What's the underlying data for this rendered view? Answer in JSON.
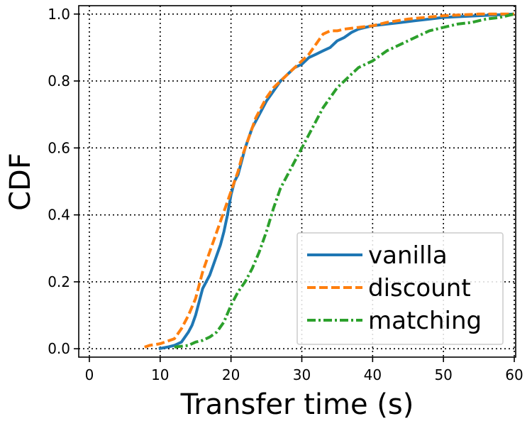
{
  "chart_data": {
    "type": "line",
    "title": "",
    "xlabel": "Transfer time (s)",
    "ylabel": "CDF",
    "xlim": [
      -1.5,
      60.2
    ],
    "ylim": [
      -0.025,
      1.025
    ],
    "xticks": [
      0,
      10,
      20,
      30,
      40,
      50,
      60
    ],
    "xtick_labels": [
      "0",
      "10",
      "20",
      "30",
      "40",
      "50",
      "60"
    ],
    "yticks": [
      0.0,
      0.2,
      0.4,
      0.6,
      0.8,
      1.0
    ],
    "ytick_labels": [
      "0.0",
      "0.2",
      "0.4",
      "0.6",
      "0.8",
      "1.0"
    ],
    "grid": true,
    "legend_position": "bottom-right",
    "series": [
      {
        "name": "vanilla",
        "color": "#1f77b4",
        "style": "solid",
        "x": [
          9.8,
          11,
          12,
          13,
          14,
          14.5,
          15,
          15.5,
          16,
          16.5,
          17,
          17.5,
          18,
          18.5,
          19,
          19.5,
          20,
          20.5,
          21,
          21.5,
          22,
          22.5,
          23,
          23.5,
          24,
          24.5,
          25,
          26,
          27,
          28,
          29,
          30,
          31,
          32,
          33,
          34,
          35,
          36,
          37,
          38,
          39,
          40,
          42,
          44,
          46,
          48,
          50,
          55,
          60
        ],
        "y": [
          0.0,
          0.005,
          0.01,
          0.02,
          0.05,
          0.07,
          0.1,
          0.14,
          0.18,
          0.2,
          0.22,
          0.25,
          0.28,
          0.31,
          0.35,
          0.4,
          0.46,
          0.5,
          0.52,
          0.56,
          0.6,
          0.63,
          0.66,
          0.68,
          0.7,
          0.72,
          0.74,
          0.77,
          0.8,
          0.82,
          0.84,
          0.85,
          0.87,
          0.88,
          0.89,
          0.9,
          0.92,
          0.93,
          0.945,
          0.955,
          0.96,
          0.965,
          0.97,
          0.975,
          0.98,
          0.985,
          0.99,
          0.995,
          1.0
        ]
      },
      {
        "name": "discount",
        "color": "#ff7f0e",
        "style": "dashed",
        "x": [
          7.8,
          8.5,
          10,
          12,
          13,
          14,
          15,
          15.5,
          16,
          16.5,
          17,
          17.5,
          18,
          18.5,
          19,
          19.5,
          20,
          20.5,
          21,
          21.5,
          22,
          22.5,
          23,
          23.5,
          24,
          24.5,
          25,
          26,
          27,
          28,
          29,
          30,
          31,
          32,
          33,
          34,
          35,
          36,
          38,
          40,
          42,
          45,
          50,
          55,
          60
        ],
        "y": [
          0.005,
          0.01,
          0.015,
          0.03,
          0.06,
          0.1,
          0.15,
          0.19,
          0.23,
          0.26,
          0.29,
          0.32,
          0.35,
          0.38,
          0.41,
          0.44,
          0.47,
          0.5,
          0.53,
          0.57,
          0.6,
          0.63,
          0.66,
          0.69,
          0.71,
          0.73,
          0.75,
          0.78,
          0.8,
          0.82,
          0.84,
          0.86,
          0.88,
          0.91,
          0.94,
          0.95,
          0.95,
          0.955,
          0.96,
          0.965,
          0.975,
          0.985,
          0.995,
          1.0,
          1.0
        ]
      },
      {
        "name": "matching",
        "color": "#2ca02c",
        "style": "dashdot",
        "x": [
          12,
          14,
          15,
          16,
          17,
          18,
          19,
          20,
          21,
          22,
          23,
          24,
          25,
          26,
          27,
          28,
          29,
          30,
          31,
          32,
          33,
          34,
          35,
          36,
          37,
          38,
          39,
          40,
          41,
          42,
          43,
          44,
          45,
          46,
          47,
          48,
          49,
          50,
          52,
          54,
          56,
          58,
          60
        ],
        "y": [
          0.005,
          0.01,
          0.02,
          0.025,
          0.035,
          0.05,
          0.08,
          0.13,
          0.17,
          0.2,
          0.24,
          0.29,
          0.35,
          0.42,
          0.48,
          0.52,
          0.56,
          0.6,
          0.64,
          0.68,
          0.72,
          0.75,
          0.78,
          0.8,
          0.82,
          0.84,
          0.85,
          0.86,
          0.875,
          0.89,
          0.9,
          0.91,
          0.92,
          0.93,
          0.94,
          0.95,
          0.955,
          0.96,
          0.97,
          0.975,
          0.985,
          0.99,
          1.0
        ]
      }
    ]
  }
}
